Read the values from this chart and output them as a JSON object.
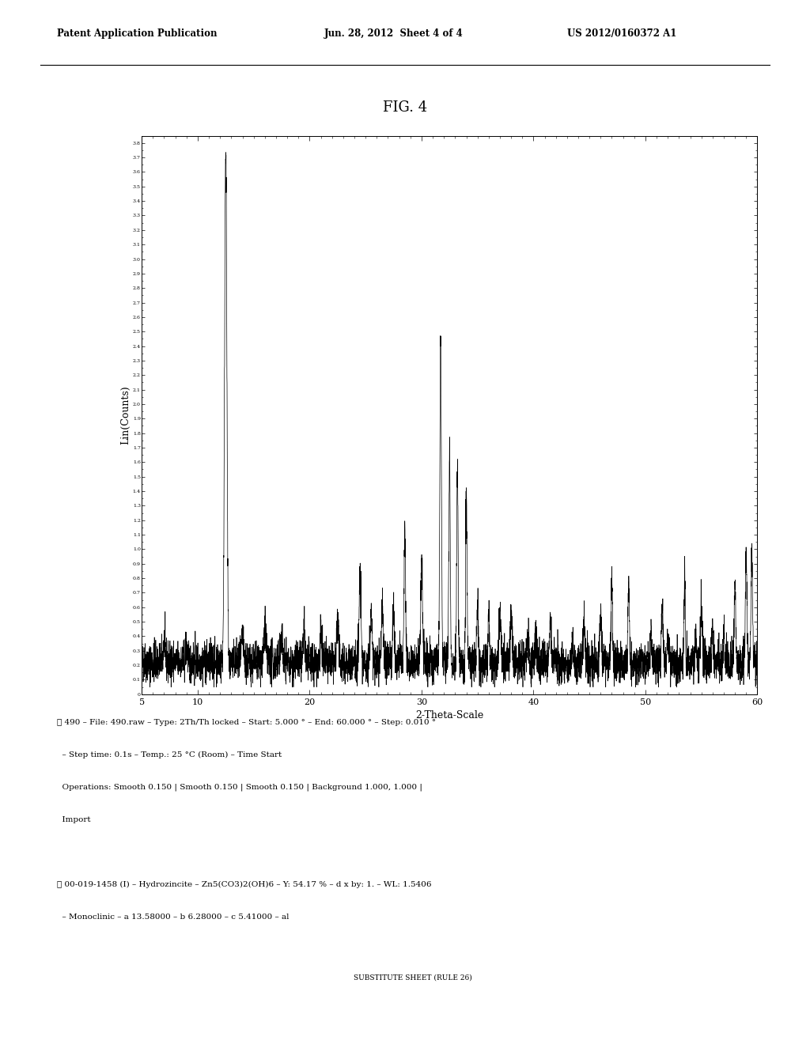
{
  "title": "FIG. 4",
  "xlabel": "2-Theta-Scale",
  "ylabel": "Lin(Counts)",
  "xlim": [
    5,
    60
  ],
  "ylim": [
    0,
    3.85
  ],
  "header_left": "Patent Application Publication",
  "header_center": "Jun. 28, 2012  Sheet 4 of 4",
  "header_right": "US 2012/0160372 A1",
  "footer_line1": "☒ 490 – File: 490.raw – Type: 2Th/Th locked – Start: 5.000 ° – End: 60.000 ° – Step: 0.010 °",
  "footer_line2": "  – Step time: 0.1s – Temp.: 25 °C (Room) – Time Start",
  "footer_line3": "  Operations: Smooth 0.150 | Smooth 0.150 | Smooth 0.150 | Background 1.000, 1.000 |",
  "footer_line4": "  Import",
  "footer_line6": "☒ 00-019-1458 (I) – Hydrozincite – Zn5(CO3)2(OH)6 – Y: 54.17 % – d x by: 1. – WL: 1.5406",
  "footer_line7": "  – Monoclinic – a 13.58000 – b 6.28000 – c 5.41000 – al",
  "footer_line8": "SUBSTITUTE SHEET (RULE 26)",
  "bg_color": "#ffffff",
  "line_color": "#000000"
}
